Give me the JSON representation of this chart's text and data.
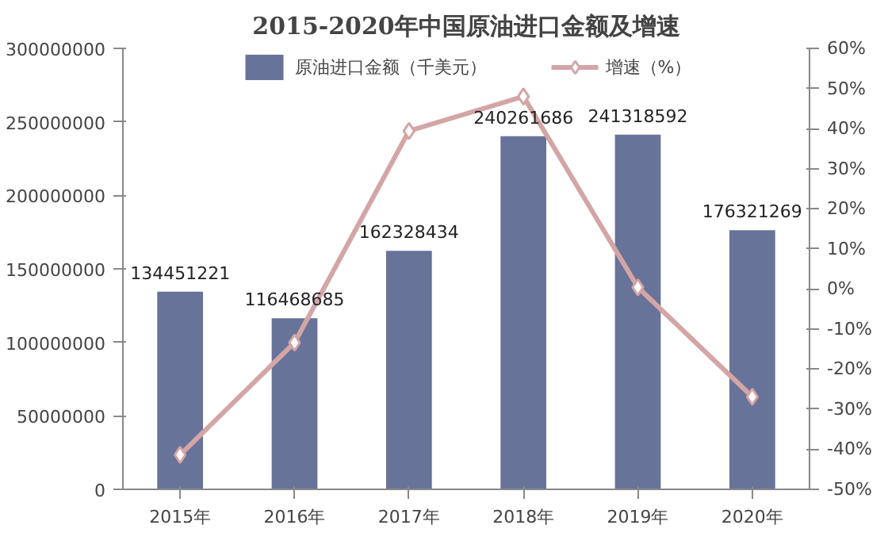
{
  "chart_data": {
    "type": "bar",
    "title": "2015-2020年中国原油进口金额及增速",
    "categories": [
      "2015年",
      "2016年",
      "2017年",
      "2018年",
      "2019年",
      "2020年"
    ],
    "series": [
      {
        "name": "原油进口金额（千美元）",
        "color": "#68739a",
        "values": [
          134451221,
          116468685,
          162328434,
          240261686,
          241318592,
          176321269
        ],
        "data_labels": true
      },
      {
        "name": "增速（%）",
        "type": "line",
        "axis": "y2",
        "color": "#d4a5a5",
        "marker": "diamond",
        "values": [
          -41.4,
          -13.4,
          39.4,
          48.0,
          0.4,
          -26.9
        ]
      }
    ],
    "ylim": [
      0,
      300000000
    ],
    "yticks": [
      0,
      50000000,
      100000000,
      150000000,
      200000000,
      250000000,
      300000000
    ],
    "y2lim": [
      -50,
      60
    ],
    "y2ticks": [
      {
        "value": -50,
        "label": "-50%"
      },
      {
        "value": -40,
        "label": "-40%"
      },
      {
        "value": -30,
        "label": "-30%"
      },
      {
        "value": -20,
        "label": "-20%"
      },
      {
        "value": -10,
        "label": "-10%"
      },
      {
        "value": 0,
        "label": "0%"
      },
      {
        "value": 10,
        "label": "10%"
      },
      {
        "value": 20,
        "label": "20%"
      },
      {
        "value": 30,
        "label": "30%"
      },
      {
        "value": 40,
        "label": "40%"
      },
      {
        "value": 50,
        "label": "50%"
      },
      {
        "value": 60,
        "label": "60%"
      }
    ],
    "grid": false,
    "legend": "top"
  }
}
